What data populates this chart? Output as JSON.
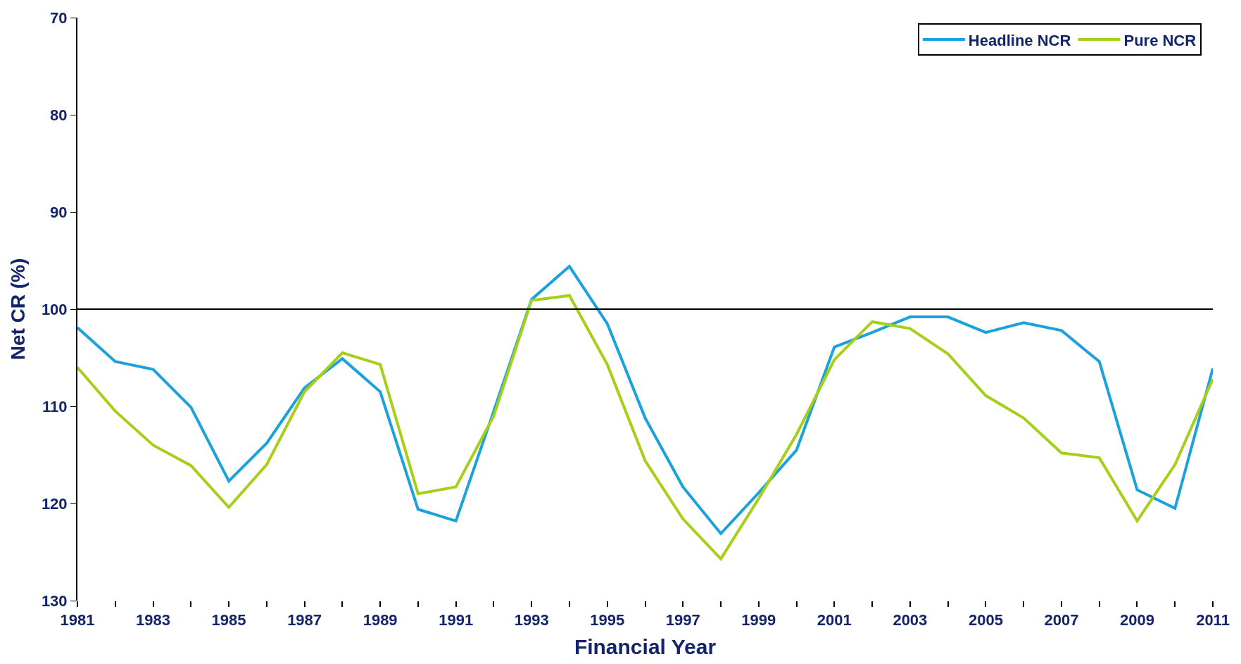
{
  "chart_data": {
    "type": "line",
    "xlabel": "Financial Year",
    "ylabel": "Net CR (%)",
    "x": [
      1981,
      1982,
      1983,
      1984,
      1985,
      1986,
      1987,
      1988,
      1989,
      1990,
      1991,
      1992,
      1993,
      1994,
      1995,
      1996,
      1997,
      1998,
      1999,
      2000,
      2001,
      2002,
      2003,
      2004,
      2005,
      2006,
      2007,
      2008,
      2009,
      2010,
      2011
    ],
    "series": [
      {
        "name": "Headline NCR",
        "color": "#1ba1db",
        "values": [
          101.9,
          105.4,
          106.2,
          110.1,
          117.7,
          113.8,
          108.1,
          105.1,
          108.5,
          120.6,
          121.8,
          110.5,
          99.0,
          95.6,
          101.5,
          111.2,
          118.3,
          123.1,
          118.9,
          114.5,
          103.9,
          102.4,
          100.8,
          100.8,
          102.4,
          101.4,
          102.2,
          105.4,
          118.6,
          120.5,
          106.1
        ]
      },
      {
        "name": "Pure NCR",
        "color": "#a6cf1a",
        "values": [
          106.0,
          110.5,
          114.0,
          116.1,
          120.4,
          116.0,
          108.5,
          104.5,
          105.7,
          119.0,
          118.3,
          111.0,
          99.1,
          98.6,
          105.7,
          115.6,
          121.6,
          125.7,
          119.5,
          112.9,
          105.2,
          101.3,
          102.0,
          104.6,
          108.9,
          111.2,
          114.8,
          115.3,
          121.8,
          116.0,
          107.2
        ]
      }
    ],
    "xlim": [
      1981,
      2011
    ],
    "xticks": [
      1981,
      {
        "value": 1982,
        "label": null
      },
      1983,
      {
        "value": 1984,
        "label": null
      },
      1985,
      {
        "value": 1986,
        "label": null
      },
      1987,
      {
        "value": 1988,
        "label": null
      },
      1989,
      {
        "value": 1990,
        "label": null
      },
      1991,
      {
        "value": 1992,
        "label": null
      },
      1993,
      {
        "value": 1994,
        "label": null
      },
      1995,
      {
        "value": 1996,
        "label": null
      },
      1997,
      {
        "value": 1998,
        "label": null
      },
      1999,
      {
        "value": 2000,
        "label": null
      },
      2001,
      {
        "value": 2002,
        "label": null
      },
      2003,
      {
        "value": 2004,
        "label": null
      },
      2005,
      {
        "value": 2006,
        "label": null
      },
      2007,
      {
        "value": 2008,
        "label": null
      },
      2009,
      {
        "value": 2010,
        "label": null
      },
      2011
    ],
    "ylim": [
      130,
      70
    ],
    "yticks": [
      70,
      80,
      90,
      100,
      110,
      120,
      130
    ],
    "ref_lines": [
      {
        "axis": "y",
        "value": 100,
        "color": "#000000"
      }
    ],
    "grid": false,
    "legend": "top right",
    "marker": "none",
    "line_style": "solid"
  }
}
